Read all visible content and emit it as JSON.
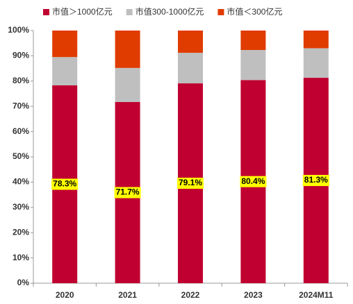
{
  "chart_data": {
    "type": "stacked_bar",
    "categories": [
      "2020",
      "2021",
      "2022",
      "2023",
      "2024M11"
    ],
    "series": [
      {
        "name": "市值＞1000亿元",
        "color": "#c00030",
        "values": [
          78.3,
          71.7,
          79.1,
          80.4,
          81.3
        ],
        "value_labels": [
          "78.3%",
          "71.7%",
          "79.1%",
          "80.4%",
          "81.3%"
        ]
      },
      {
        "name": "市值300-1000亿元",
        "color": "#bfbfbf",
        "values": [
          11.2,
          13.5,
          12.1,
          11.9,
          11.7
        ]
      },
      {
        "name": "市值＜300亿元",
        "color": "#e03c00",
        "values": [
          10.5,
          14.8,
          8.8,
          7.7,
          7.0
        ]
      }
    ],
    "ylim": [
      0,
      100
    ],
    "yticks": [
      {
        "value": 0,
        "label": "0%"
      },
      {
        "value": 10,
        "label": "10%"
      },
      {
        "value": 20,
        "label": "20%"
      },
      {
        "value": 30,
        "label": "30%"
      },
      {
        "value": 40,
        "label": "40%"
      },
      {
        "value": 50,
        "label": "50%"
      },
      {
        "value": 60,
        "label": "60%"
      },
      {
        "value": 70,
        "label": "70%"
      },
      {
        "value": 80,
        "label": "80%"
      },
      {
        "value": 90,
        "label": "90%"
      },
      {
        "value": 100,
        "label": "100%"
      }
    ],
    "legend": "top"
  }
}
